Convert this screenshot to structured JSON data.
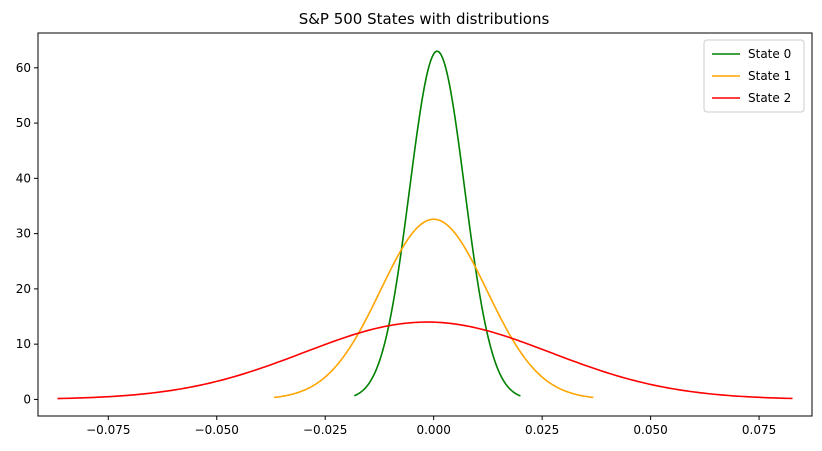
{
  "chart_data": {
    "type": "line",
    "title": "S&P 500 States with distributions",
    "xlabel": "",
    "ylabel": "",
    "xlim": [
      -0.0912,
      0.0872
    ],
    "ylim": [
      -3.0,
      66.3
    ],
    "xticks": [
      -0.075,
      -0.05,
      -0.025,
      0.0,
      0.025,
      0.05,
      0.075
    ],
    "xtick_labels": [
      "−0.075",
      "−0.050",
      "−0.025",
      "0.000",
      "0.025",
      "0.050",
      "0.075"
    ],
    "yticks": [
      0,
      10,
      20,
      30,
      40,
      50,
      60
    ],
    "ytick_labels": [
      "0",
      "10",
      "20",
      "30",
      "40",
      "50",
      "60"
    ],
    "grid": false,
    "legend_position": "top-right",
    "series": [
      {
        "name": "State 0",
        "color": "#008000",
        "distribution": "normal",
        "mean": 0.0008,
        "std": 0.00633,
        "x_range": [
          -0.0183,
          0.02
        ],
        "peak": 63.0
      },
      {
        "name": "State 1",
        "color": "#FFA500",
        "distribution": "normal",
        "mean": 0.0,
        "std": 0.01224,
        "x_range": [
          -0.0368,
          0.0368
        ],
        "peak": 32.6
      },
      {
        "name": "State 2",
        "color": "#FF0000",
        "distribution": "normal",
        "mean": -0.0015,
        "std": 0.02843,
        "x_range": [
          -0.0867,
          0.0827
        ],
        "peak": 14.0
      }
    ]
  }
}
